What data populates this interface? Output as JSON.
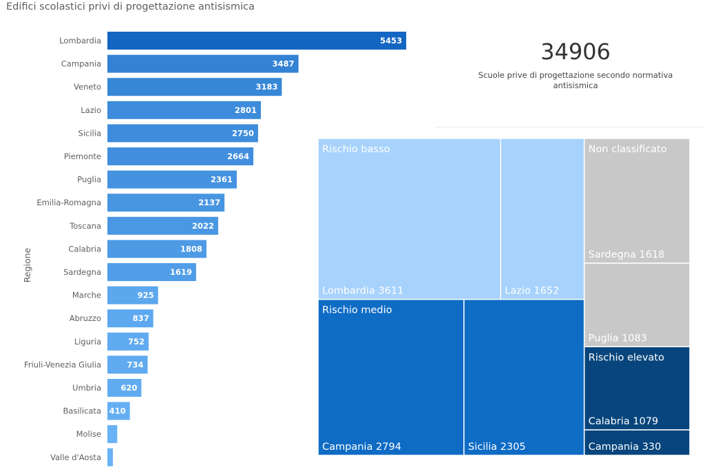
{
  "title": "Edifici scolastici privi di progettazione antisismica",
  "ylabel": "Regione",
  "kpi": {
    "value": "34906",
    "caption": "Scuole prive di progettazione secondo normativa antisismica"
  },
  "chart_data": [
    {
      "type": "bar",
      "orientation": "horizontal",
      "title": "Edifici scolastici privi di progettazione antisismica",
      "ylabel": "Regione",
      "categories": [
        "Lombardia",
        "Campania",
        "Veneto",
        "Lazio",
        "Sicilia",
        "Piemonte",
        "Puglia",
        "Emilia-Romagna",
        "Toscana",
        "Calabria",
        "Sardegna",
        "Marche",
        "Abruzzo",
        "Liguria",
        "Friuli-Venezia Giulia",
        "Umbria",
        "Basilicata",
        "Molise",
        "Valle d'Aosta"
      ],
      "values": [
        5453,
        3487,
        3183,
        2801,
        2750,
        2664,
        2361,
        2137,
        2022,
        1808,
        1619,
        925,
        837,
        752,
        734,
        620,
        410,
        180,
        100
      ],
      "value_labels": [
        "5453",
        "3487",
        "3183",
        "2801",
        "2750",
        "2664",
        "2361",
        "2137",
        "2022",
        "1808",
        "1619",
        "925",
        "837",
        "752",
        "734",
        "620",
        "410",
        "",
        ""
      ],
      "colors": {
        "max": "#1366c1",
        "min": "#69b3f6"
      }
    },
    {
      "type": "treemap",
      "groups": [
        {
          "name": "Rischio basso",
          "color": "#a7d2fc",
          "children": [
            {
              "name": "Lombardia",
              "value": 3611
            },
            {
              "name": "Lazio",
              "value": 1652
            }
          ]
        },
        {
          "name": "Rischio medio",
          "color": "#0f6cc5",
          "children": [
            {
              "name": "Campania",
              "value": 2794
            },
            {
              "name": "Sicilia",
              "value": 2305
            }
          ]
        },
        {
          "name": "Non classificato",
          "color": "#c8c8c8",
          "children": [
            {
              "name": "Sardegna",
              "value": 1618
            },
            {
              "name": "Puglia",
              "value": 1083
            }
          ]
        },
        {
          "name": "Rischio elevato",
          "color": "#07457c",
          "children": [
            {
              "name": "Calabria",
              "value": 1079
            },
            {
              "name": "Campania",
              "value": 330
            }
          ]
        }
      ]
    }
  ]
}
